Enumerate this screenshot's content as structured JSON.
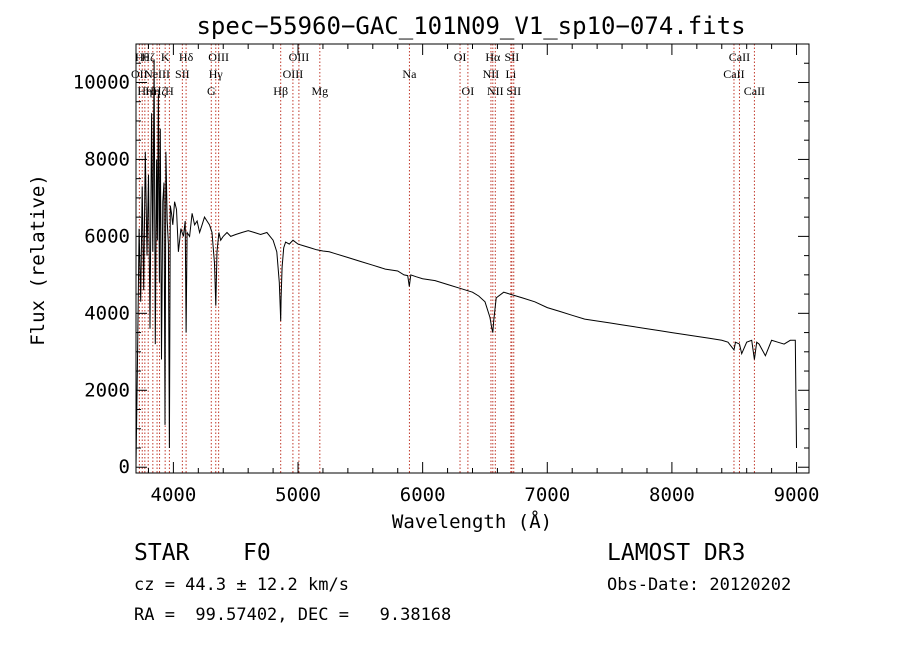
{
  "chart_data": {
    "type": "line",
    "title": "spec−55960−GAC_101N09_V1_sp10−074.fits",
    "xlabel": "Wavelength (Å)",
    "ylabel": "Flux (relative)",
    "xlim": [
      3700,
      9100
    ],
    "ylim": [
      -150,
      11000
    ],
    "xticks": [
      4000,
      5000,
      6000,
      7000,
      8000,
      9000
    ],
    "xtick_labels": [
      "4000",
      "5000",
      "6000",
      "7000",
      "8000",
      "9000"
    ],
    "yticks": [
      0,
      2000,
      4000,
      6000,
      8000,
      10000
    ],
    "ytick_labels": [
      "0",
      "2000",
      "4000",
      "6000",
      "8000",
      "10000"
    ],
    "series": [
      {
        "name": "flux",
        "x": [
          3700,
          3712,
          3725,
          3738,
          3750,
          3762,
          3775,
          3788,
          3800,
          3812,
          3825,
          3835,
          3845,
          3855,
          3865,
          3872,
          3880,
          3888,
          3895,
          3905,
          3915,
          3925,
          3933,
          3940,
          3950,
          3960,
          3968,
          3975,
          3985,
          3995,
          4010,
          4025,
          4040,
          4060,
          4080,
          4095,
          4102,
          4110,
          4130,
          4150,
          4170,
          4190,
          4210,
          4230,
          4250,
          4270,
          4290,
          4310,
          4330,
          4340,
          4350,
          4365,
          4380,
          4400,
          4430,
          4460,
          4500,
          4550,
          4600,
          4650,
          4700,
          4750,
          4800,
          4830,
          4850,
          4858,
          4861,
          4864,
          4872,
          4885,
          4900,
          4930,
          4960,
          5000,
          5050,
          5100,
          5150,
          5200,
          5250,
          5300,
          5400,
          5500,
          5600,
          5700,
          5800,
          5850,
          5880,
          5893,
          5905,
          5950,
          6000,
          6100,
          6200,
          6300,
          6400,
          6450,
          6500,
          6540,
          6556,
          6563,
          6570,
          6590,
          6650,
          6700,
          6800,
          6900,
          7000,
          7100,
          7200,
          7300,
          7400,
          7500,
          7600,
          7700,
          7800,
          7900,
          8000,
          8100,
          8200,
          8300,
          8400,
          8450,
          8498,
          8510,
          8542,
          8560,
          8600,
          8640,
          8662,
          8680,
          8700,
          8750,
          8800,
          8850,
          8900,
          8950,
          8990,
          9000
        ],
        "y": [
          0,
          2800,
          6200,
          4300,
          7300,
          4600,
          8200,
          5500,
          7600,
          3600,
          9200,
          5600,
          10600,
          3200,
          8000,
          5900,
          9700,
          4800,
          8800,
          2800,
          6900,
          7400,
          1100,
          8200,
          6400,
          5800,
          500,
          6800,
          6600,
          6300,
          6900,
          6700,
          5600,
          6200,
          6000,
          6400,
          3500,
          6100,
          6000,
          6600,
          6300,
          6400,
          6100,
          6300,
          6500,
          6400,
          6300,
          6100,
          5300,
          4200,
          5600,
          6100,
          5900,
          6000,
          6100,
          6000,
          6050,
          6100,
          6150,
          6100,
          6050,
          6100,
          5900,
          5600,
          4800,
          4100,
          3800,
          4400,
          5200,
          5700,
          5850,
          5800,
          5900,
          5800,
          5750,
          5700,
          5650,
          5620,
          5600,
          5550,
          5450,
          5350,
          5250,
          5150,
          5100,
          5000,
          4980,
          4700,
          5000,
          4950,
          4900,
          4850,
          4750,
          4650,
          4550,
          4450,
          4300,
          3900,
          3600,
          3500,
          3800,
          4400,
          4550,
          4500,
          4400,
          4300,
          4150,
          4050,
          3950,
          3850,
          3800,
          3750,
          3700,
          3650,
          3600,
          3550,
          3500,
          3450,
          3400,
          3350,
          3300,
          3250,
          3050,
          3250,
          3200,
          2950,
          3250,
          3300,
          2800,
          3250,
          3200,
          2900,
          3300,
          3250,
          3200,
          3300,
          3300,
          500
        ]
      }
    ],
    "line_annotations": [
      {
        "wavelength": 3727,
        "label": "OII",
        "row": 2
      },
      {
        "wavelength": 3750,
        "label": "Hθ",
        "row": 1
      },
      {
        "wavelength": 3771,
        "label": "Hη",
        "row": 3
      },
      {
        "wavelength": 3798,
        "label": "Hζ",
        "row": 1
      },
      {
        "wavelength": 3835,
        "label": "Hη",
        "row": 3
      },
      {
        "wavelength": 3869,
        "label": "NeIII",
        "row": 2
      },
      {
        "wavelength": 3889,
        "label": "Hζ",
        "row": 3
      },
      {
        "wavelength": 3934,
        "label": "K",
        "row": 1
      },
      {
        "wavelength": 3968,
        "label": "H",
        "row": 3
      },
      {
        "wavelength": 4072,
        "label": "SII",
        "row": 2
      },
      {
        "wavelength": 4102,
        "label": "Hδ",
        "row": 1
      },
      {
        "wavelength": 4304,
        "label": "G",
        "row": 3
      },
      {
        "wavelength": 4340,
        "label": "Hγ",
        "row": 2
      },
      {
        "wavelength": 4363,
        "label": "OIII",
        "row": 1
      },
      {
        "wavelength": 4861,
        "label": "Hβ",
        "row": 3
      },
      {
        "wavelength": 4959,
        "label": "OIII",
        "row": 2
      },
      {
        "wavelength": 5007,
        "label": "OIII",
        "row": 1
      },
      {
        "wavelength": 5175,
        "label": "Mg",
        "row": 3
      },
      {
        "wavelength": 5894,
        "label": "Na",
        "row": 2
      },
      {
        "wavelength": 6300,
        "label": "OI",
        "row": 1
      },
      {
        "wavelength": 6363,
        "label": "OI",
        "row": 3
      },
      {
        "wavelength": 6548,
        "label": "NII",
        "row": 2
      },
      {
        "wavelength": 6563,
        "label": "Hα",
        "row": 1
      },
      {
        "wavelength": 6583,
        "label": "NII",
        "row": 3
      },
      {
        "wavelength": 6708,
        "label": "Li",
        "row": 2
      },
      {
        "wavelength": 6716,
        "label": "SII",
        "row": 1
      },
      {
        "wavelength": 6731,
        "label": "SII",
        "row": 3
      },
      {
        "wavelength": 8498,
        "label": "CaII",
        "row": 2
      },
      {
        "wavelength": 8542,
        "label": "CaII",
        "row": 1
      },
      {
        "wavelength": 8662,
        "label": "CaII",
        "row": 3
      }
    ]
  },
  "info": {
    "object_class": "STAR",
    "subclass": "F0",
    "survey": "LAMOST DR3",
    "redshift": "cz = 44.3 ± 12.2 km/s",
    "obs_date": "Obs-Date: 20120202",
    "coordinates": "RA =  99.57402, DEC =   9.38168"
  }
}
